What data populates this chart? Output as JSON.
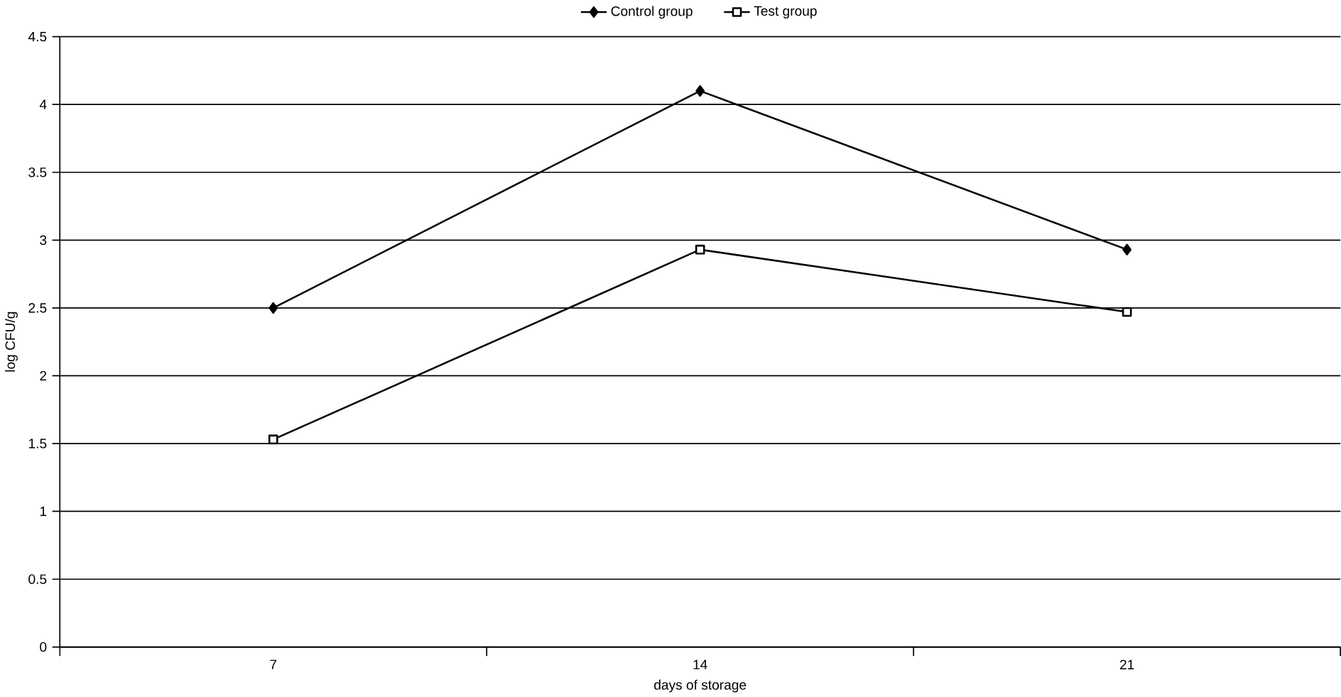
{
  "chart_data": {
    "type": "line",
    "xlabel": "days of storage",
    "ylabel": "log CFU/g",
    "categories": [
      "7",
      "14",
      "21"
    ],
    "series": [
      {
        "name": "Control group",
        "color": "#000000",
        "marker": "diamond",
        "values": [
          2.5,
          4.1,
          2.93
        ]
      },
      {
        "name": "Test group",
        "color": "#000000",
        "marker": "square",
        "values": [
          1.53,
          2.93,
          2.47
        ]
      }
    ],
    "ylim": [
      0,
      4.5
    ],
    "yticks": [
      0,
      0.5,
      1,
      1.5,
      2,
      2.5,
      3,
      3.5,
      4,
      4.5
    ],
    "grid": "y",
    "legend": "top",
    "line_style": "solid"
  }
}
